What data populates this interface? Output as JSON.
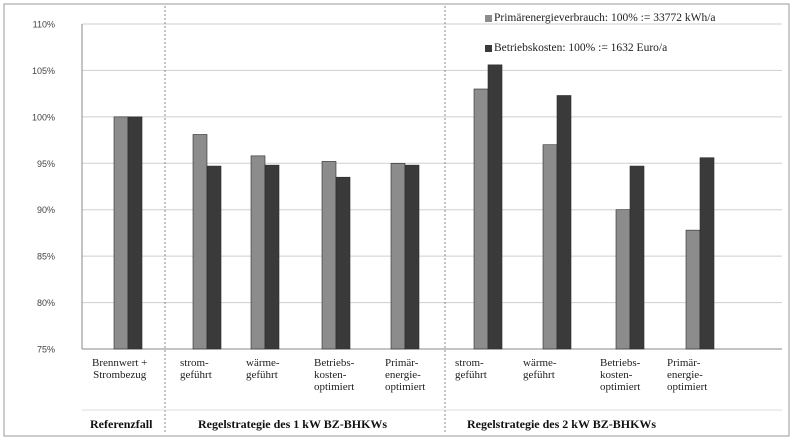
{
  "chart_data": {
    "type": "bar",
    "ylim": [
      75,
      110
    ],
    "yticks": [
      "75%",
      "80%",
      "85%",
      "90%",
      "95%",
      "100%",
      "105%",
      "110%"
    ],
    "grid": true,
    "legend_placement": "top-right",
    "categories": [
      "Brennwert +\nStrombezug",
      "strom-\ngeführt",
      "wärme-\ngeführt",
      "Betriebs-\nkosten-\noptimiert",
      "Primär-\nenergie-\noptimiert",
      "strom-\ngeführt",
      "wärme-\ngeführt",
      "Betriebs-\nkosten-\noptimiert",
      "Primär-\nenergie-\noptimiert"
    ],
    "series": [
      {
        "name": "Primärenergieverbrauch: 100% := 33772 kWh/a",
        "color": "#8c8c8c",
        "values": [
          100.0,
          98.1,
          95.8,
          95.2,
          95.0,
          103.0,
          97.0,
          90.0,
          87.8
        ]
      },
      {
        "name": "Betriebskosten: 100% := 1632 Euro/a",
        "color": "#3a3a3a",
        "values": [
          100.0,
          94.7,
          94.8,
          93.5,
          94.8,
          105.6,
          102.3,
          94.7,
          95.6
        ]
      }
    ],
    "groups": [
      {
        "label": "Referenzfall"
      },
      {
        "label": "Regelstrategie des 1 kW BZ-BHKWs"
      },
      {
        "label": "Regelstrategie des 2 kW BZ-BHKWs"
      }
    ]
  }
}
